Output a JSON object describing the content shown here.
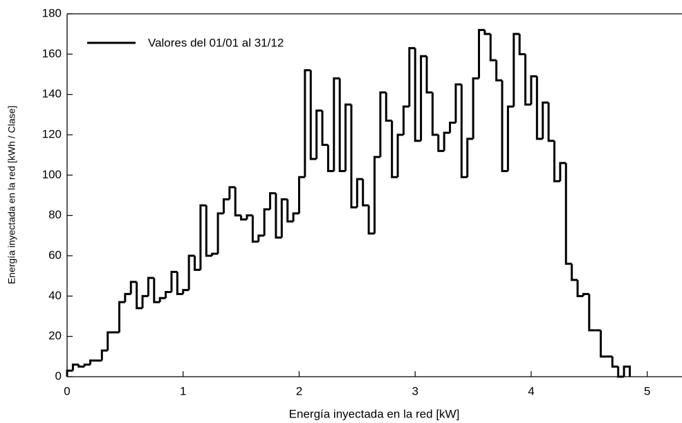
{
  "chart_data": {
    "type": "histogram",
    "xlabel": "Energía inyectada en la red [kW]",
    "ylabel": "Energía  inyectada  en  la  red  [kWh  /  Clase]",
    "series": [
      {
        "name": "Valores del 01/01 al 31/12",
        "color": "#000000"
      }
    ],
    "bins": [
      0,
      0.05,
      0.1,
      0.15,
      0.2,
      0.25,
      0.3,
      0.35,
      0.4,
      0.45,
      0.5,
      0.55,
      0.6,
      0.65,
      0.7,
      0.75,
      0.8,
      0.85,
      0.9,
      0.95,
      1,
      1.05,
      1.1,
      1.15,
      1.2,
      1.25,
      1.3,
      1.35,
      1.4,
      1.45,
      1.5,
      1.55,
      1.6,
      1.65,
      1.7,
      1.75,
      1.8,
      1.85,
      1.9,
      1.95,
      2,
      2.05,
      2.1,
      2.15,
      2.2,
      2.25,
      2.3,
      2.35,
      2.4,
      2.45,
      2.5,
      2.55,
      2.6,
      2.65,
      2.7,
      2.75,
      2.8,
      2.85,
      2.9,
      2.95,
      3,
      3.05,
      3.1,
      3.15,
      3.2,
      3.25,
      3.3,
      3.35,
      3.4,
      3.45,
      3.5,
      3.55,
      3.6,
      3.65,
      3.7,
      3.75,
      3.8,
      3.85,
      3.9,
      3.95,
      4,
      4.05,
      4.1,
      4.15,
      4.2,
      4.25,
      4.3,
      4.35,
      4.4,
      4.45,
      4.5,
      4.55,
      4.6,
      4.65,
      4.7,
      4.75,
      4.8,
      4.85
    ],
    "values": [
      3,
      6,
      5,
      6,
      8,
      8,
      13,
      22,
      22,
      37,
      41,
      47,
      34,
      40,
      49,
      37,
      39,
      42,
      52,
      41,
      43,
      60,
      53,
      85,
      60,
      61,
      81,
      88,
      94,
      80,
      78,
      80,
      67,
      70,
      83,
      91,
      69,
      88,
      77,
      81,
      99,
      152,
      108,
      132,
      115,
      102,
      148,
      102,
      135,
      84,
      98,
      85,
      71,
      109,
      141,
      127,
      99,
      120,
      134,
      163,
      117,
      159,
      141,
      120,
      112,
      121,
      126,
      145,
      99,
      118,
      148,
      172,
      170,
      157,
      147,
      102,
      134,
      170,
      160,
      135,
      149,
      118,
      136,
      117,
      97,
      106,
      56,
      48,
      40,
      41,
      23,
      23,
      10,
      10,
      5,
      0,
      5
    ],
    "xlim": [
      0,
      5.3
    ],
    "ylim": [
      0,
      180
    ],
    "xticks": [
      0,
      1,
      2,
      3,
      4,
      5
    ],
    "yticks": [
      0,
      20,
      40,
      60,
      80,
      100,
      120,
      140,
      160,
      180
    ],
    "legend": "upper left"
  }
}
